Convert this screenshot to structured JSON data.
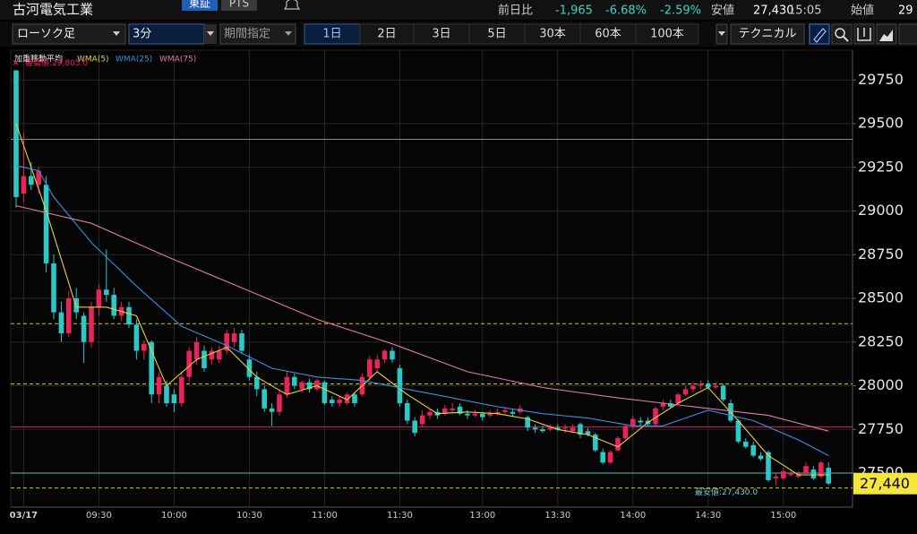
{
  "header": {
    "title": "古河電気工業",
    "exchange_tabs": [
      "東証",
      "PTS"
    ],
    "quote": {
      "change_label": "前日比",
      "change": "-1,965",
      "change_pct": "-6.68%",
      "other_pct": "-2.59%",
      "low_label": "安値",
      "low": "27,430",
      "time": "15:05",
      "open_label": "始値",
      "open": "29"
    }
  },
  "toolbar": {
    "chart_type": "ローソク足",
    "interval": "3分",
    "period": "期間指定",
    "ranges": [
      "1日",
      "2日",
      "3日",
      "5日",
      "30本",
      "60本",
      "100本"
    ],
    "active_range": "1日",
    "technical": "テクニカル"
  },
  "chart_data": {
    "type": "candlestick",
    "legend_title": "加重移動平均",
    "up_color": "#e8245a",
    "down_color": "#2cc8c8",
    "categories": [
      null,
      "03/17",
      null,
      null,
      null,
      null,
      null,
      null,
      null,
      null,
      null,
      "09:30",
      null,
      null,
      null,
      null,
      null,
      null,
      null,
      null,
      null,
      "10:00",
      null,
      null,
      null,
      null,
      null,
      null,
      null,
      null,
      null,
      "10:30",
      null,
      null,
      null,
      null,
      null,
      null,
      null,
      null,
      null,
      "11:00",
      null,
      null,
      null,
      null,
      null,
      null,
      null,
      null,
      null,
      "11:30",
      null,
      null,
      null,
      null,
      null,
      null,
      null,
      null,
      null,
      null,
      "13:00",
      null,
      null,
      null,
      null,
      null,
      null,
      null,
      null,
      null,
      "13:30",
      null,
      null,
      null,
      null,
      null,
      null,
      null,
      null,
      null,
      "14:00",
      null,
      null,
      null,
      null,
      null,
      null,
      null,
      null,
      null,
      "14:30",
      null,
      null,
      null,
      null,
      null,
      null,
      null,
      null,
      null,
      "15:00",
      null,
      null,
      null,
      null,
      null,
      null
    ],
    "open": [
      29805,
      29100,
      29200,
      29150,
      29150,
      28700,
      28420,
      28300,
      28500,
      28400,
      28250,
      28450,
      28550,
      28520,
      28400,
      28450,
      28350,
      28200,
      28250,
      27950,
      28000,
      27950,
      27900,
      28050,
      28150,
      28200,
      28150,
      28150,
      28200,
      28250,
      28300,
      28150,
      28050,
      27980,
      27870,
      27850,
      27950,
      28050,
      27980,
      28020,
      27980,
      28020,
      27920,
      27900,
      27900,
      27950,
      27950,
      28050,
      28100,
      28150,
      28200,
      28100,
      27900,
      27800,
      27780,
      27830,
      27850,
      27840,
      27860,
      27880,
      27840,
      27830,
      27840,
      27830,
      27840,
      27850,
      27850,
      27850,
      27820,
      27760,
      27750,
      27750,
      27760,
      27760,
      27740,
      27780,
      27740,
      27720,
      27620,
      27560,
      27630,
      27700,
      27770,
      27800,
      27800,
      27780,
      27880,
      27900,
      27900,
      27950,
      27980,
      28000,
      28010,
      27990,
      28000,
      27900,
      27800,
      27680,
      27660,
      27600,
      27620,
      27470,
      27470,
      27490,
      27480,
      27500,
      27520,
      27480,
      27530
    ],
    "high": [
      29805,
      29450,
      29280,
      29250,
      29200,
      28750,
      28480,
      28540,
      28560,
      28420,
      28480,
      28580,
      28780,
      28560,
      28480,
      28480,
      28380,
      28260,
      28260,
      28080,
      28030,
      27980,
      28080,
      28220,
      28280,
      28230,
      28220,
      28230,
      28320,
      28330,
      28320,
      28180,
      28080,
      28000,
      27900,
      27980,
      28080,
      28070,
      28030,
      28040,
      28040,
      28030,
      27940,
      27940,
      27960,
      27960,
      28070,
      28170,
      28180,
      28210,
      28220,
      28120,
      27920,
      27820,
      27860,
      27870,
      27870,
      27890,
      27900,
      27900,
      27860,
      27860,
      27850,
      27860,
      27870,
      27880,
      27870,
      27890,
      27830,
      27780,
      27770,
      27780,
      27780,
      27780,
      27780,
      27790,
      27760,
      27730,
      27640,
      27630,
      27710,
      27780,
      27830,
      27820,
      27820,
      27880,
      27920,
      27920,
      27960,
      28000,
      28020,
      28030,
      28030,
      28020,
      28010,
      27920,
      27810,
      27700,
      27680,
      27620,
      27630,
      27500,
      27530,
      27520,
      27510,
      27560,
      27540,
      27570,
      27560
    ],
    "low": [
      29020,
      29050,
      29120,
      29100,
      28650,
      28380,
      28250,
      28280,
      28380,
      28130,
      28220,
      28400,
      28480,
      28380,
      28370,
      28330,
      28150,
      28150,
      27900,
      27900,
      27880,
      27850,
      27880,
      28020,
      28120,
      28080,
      28120,
      28130,
      28180,
      28220,
      28180,
      28030,
      27940,
      27850,
      27770,
      27830,
      27930,
      27980,
      27960,
      27960,
      27970,
      27890,
      27880,
      27880,
      27890,
      27880,
      27940,
      28030,
      28080,
      28130,
      28130,
      27880,
      27780,
      27710,
      27760,
      27810,
      27810,
      27830,
      27840,
      27830,
      27810,
      27820,
      27800,
      27820,
      27830,
      27840,
      27820,
      27840,
      27740,
      27730,
      27730,
      27740,
      27740,
      27730,
      27730,
      27700,
      27710,
      27620,
      27550,
      27550,
      27620,
      27690,
      27750,
      27770,
      27770,
      27770,
      27860,
      27870,
      27890,
      27940,
      27960,
      27980,
      27980,
      27980,
      27910,
      27790,
      27670,
      27640,
      27590,
      27570,
      27450,
      27430,
      27460,
      27480,
      27470,
      27490,
      27460,
      27470,
      27430
    ],
    "close": [
      29080,
      29200,
      29150,
      29230,
      28700,
      28420,
      28300,
      28500,
      28420,
      28250,
      28450,
      28550,
      28520,
      28400,
      28450,
      28350,
      28200,
      28240,
      27950,
      28050,
      27900,
      27900,
      28050,
      28200,
      28250,
      28100,
      28200,
      28200,
      28300,
      28300,
      28200,
      28050,
      27980,
      27870,
      27850,
      27950,
      28050,
      28000,
      28020,
      27980,
      28030,
      27900,
      27900,
      27920,
      27950,
      27900,
      28050,
      28150,
      28150,
      28200,
      28150,
      27900,
      27800,
      27730,
      27830,
      27850,
      27830,
      27870,
      27870,
      27840,
      27830,
      27840,
      27820,
      27840,
      27850,
      27860,
      27840,
      27870,
      27760,
      27750,
      27740,
      27760,
      27750,
      27760,
      27760,
      27720,
      27720,
      27630,
      27560,
      27620,
      27700,
      27770,
      27810,
      27790,
      27780,
      27870,
      27900,
      27880,
      27950,
      27980,
      28000,
      28010,
      27990,
      28000,
      27920,
      27800,
      27680,
      27650,
      27600,
      27580,
      27460,
      27480,
      27510,
      27500,
      27500,
      27540,
      27470,
      27560,
      27440
    ],
    "series": [
      {
        "name": "WMA(5)",
        "color": "#e8d23a",
        "x": [
          0,
          4,
          8,
          12,
          16,
          20,
          24,
          28,
          32,
          36,
          40,
          44,
          48,
          52,
          56,
          60,
          64,
          68,
          72,
          76,
          80,
          84,
          88,
          92,
          96,
          100,
          104,
          108
        ],
        "values": [
          29500,
          29000,
          28450,
          28450,
          28400,
          28000,
          28150,
          28220,
          28050,
          27950,
          28000,
          27920,
          28080,
          27950,
          27840,
          27850,
          27840,
          27810,
          27750,
          27720,
          27650,
          27790,
          27900,
          27990,
          27800,
          27600,
          27490,
          27490
        ]
      },
      {
        "name": "WMA(25)",
        "color": "#3d8ee0",
        "x": [
          0,
          3,
          5,
          10,
          16,
          22,
          28,
          34,
          40,
          46,
          52,
          58,
          64,
          70,
          76,
          82,
          86,
          92,
          98,
          104,
          108
        ],
        "values": [
          29260,
          29230,
          29080,
          28820,
          28570,
          28340,
          28230,
          28100,
          28050,
          28030,
          27980,
          27930,
          27880,
          27840,
          27815,
          27770,
          27770,
          27860,
          27800,
          27690,
          27600
        ]
      },
      {
        "name": "WMA(75)",
        "color": "#e07aa8",
        "x": [
          0,
          10,
          20,
          30,
          40,
          50,
          60,
          70,
          80,
          90,
          100,
          108
        ],
        "values": [
          29030,
          28930,
          28740,
          28560,
          28380,
          28240,
          28080,
          27990,
          27930,
          27880,
          27830,
          27740
        ]
      }
    ],
    "ylim": [
      27300,
      29900
    ],
    "yticks": [
      27500,
      27750,
      28000,
      28250,
      28500,
      28750,
      29000,
      29250,
      29500,
      29750
    ],
    "grid": true,
    "levels": [
      {
        "value": 29410,
        "color": "#8a8a8a",
        "style": "solid"
      },
      {
        "value": 28355,
        "color": "#d9c41c",
        "style": "dashed"
      },
      {
        "value": 28010,
        "color": "#d9c41c",
        "style": "dashed"
      },
      {
        "value": 27765,
        "color": "#c8285e",
        "style": "solid"
      },
      {
        "value": 27500,
        "color": "#4fb8cc",
        "style": "solid"
      },
      {
        "value": 27415,
        "color": "#d9c41c",
        "style": "dashed"
      }
    ],
    "high_annotation": {
      "value": 29805,
      "label": "最高値:29,805.0"
    },
    "low_annotation": {
      "value": 27430,
      "label": "最安値:27,430.0"
    },
    "price_tag": {
      "value": 27440,
      "label": "27,440"
    }
  }
}
